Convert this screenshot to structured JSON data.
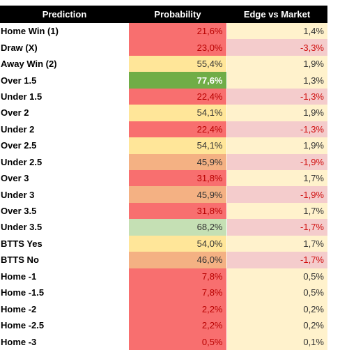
{
  "table": {
    "header": [
      "Prediction",
      "Probability",
      "Edge vs Market"
    ],
    "rows": [
      [
        "Home Win (1)",
        "21,6%",
        "1,4%"
      ],
      [
        "Draw (X)",
        "23,0%",
        "-3,3%"
      ],
      [
        "Away Win (2)",
        "55,4%",
        "1,9%"
      ],
      [
        "Over 1.5",
        "77,6%",
        "1,3%"
      ],
      [
        "Under 1.5",
        "22,4%",
        "-1,3%"
      ],
      [
        "Over 2",
        "54,1%",
        "1,9%"
      ],
      [
        "Under 2",
        "22,4%",
        "-1,3%"
      ],
      [
        "Over 2.5",
        "54,1%",
        "1,9%"
      ],
      [
        "Under 2.5",
        "45,9%",
        "-1,9%"
      ],
      [
        "Over 3",
        "31,8%",
        "1,7%"
      ],
      [
        "Under 3",
        "45,9%",
        "-1,9%"
      ],
      [
        "Over 3.5",
        "31,8%",
        "1,7%"
      ],
      [
        "Under 3.5",
        "68,2%",
        "-1,7%"
      ],
      [
        "BTTS Yes",
        "54,0%",
        "1,7%"
      ],
      [
        "BTTS No",
        "46,0%",
        "-1,7%"
      ],
      [
        "Home -1",
        "7,8%",
        "0,5%"
      ],
      [
        "Home -1.5",
        "7,8%",
        "0,5%"
      ],
      [
        "Home -2",
        "2,2%",
        "0,2%"
      ],
      [
        "Home -2.5",
        "2,2%",
        "0,2%"
      ],
      [
        "Home -3",
        "0,5%",
        "0,1%"
      ]
    ]
  }
}
